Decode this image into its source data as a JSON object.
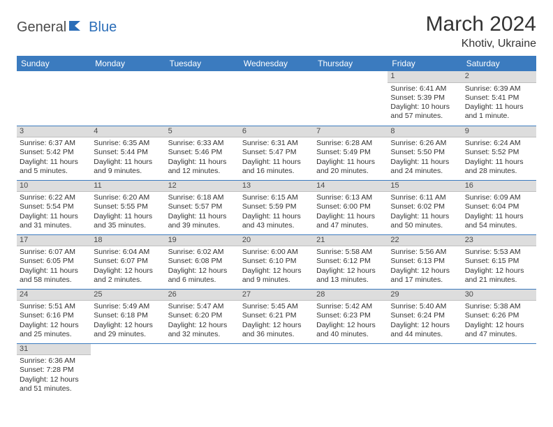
{
  "logo": {
    "part1": "General",
    "part2": "Blue"
  },
  "title": "March 2024",
  "location": "Khotiv, Ukraine",
  "colors": {
    "header_bg": "#3b7bbf",
    "header_text": "#ffffff",
    "daybar_bg": "#dddddd",
    "cell_border": "#3b7bbf",
    "text": "#333333",
    "logo_blue": "#2a6db8"
  },
  "weekdays": [
    "Sunday",
    "Monday",
    "Tuesday",
    "Wednesday",
    "Thursday",
    "Friday",
    "Saturday"
  ],
  "weeks": [
    [
      null,
      null,
      null,
      null,
      null,
      {
        "n": "1",
        "sr": "Sunrise: 6:41 AM",
        "ss": "Sunset: 5:39 PM",
        "d1": "Daylight: 10 hours",
        "d2": "and 57 minutes."
      },
      {
        "n": "2",
        "sr": "Sunrise: 6:39 AM",
        "ss": "Sunset: 5:41 PM",
        "d1": "Daylight: 11 hours",
        "d2": "and 1 minute."
      }
    ],
    [
      {
        "n": "3",
        "sr": "Sunrise: 6:37 AM",
        "ss": "Sunset: 5:42 PM",
        "d1": "Daylight: 11 hours",
        "d2": "and 5 minutes."
      },
      {
        "n": "4",
        "sr": "Sunrise: 6:35 AM",
        "ss": "Sunset: 5:44 PM",
        "d1": "Daylight: 11 hours",
        "d2": "and 9 minutes."
      },
      {
        "n": "5",
        "sr": "Sunrise: 6:33 AM",
        "ss": "Sunset: 5:46 PM",
        "d1": "Daylight: 11 hours",
        "d2": "and 12 minutes."
      },
      {
        "n": "6",
        "sr": "Sunrise: 6:31 AM",
        "ss": "Sunset: 5:47 PM",
        "d1": "Daylight: 11 hours",
        "d2": "and 16 minutes."
      },
      {
        "n": "7",
        "sr": "Sunrise: 6:28 AM",
        "ss": "Sunset: 5:49 PM",
        "d1": "Daylight: 11 hours",
        "d2": "and 20 minutes."
      },
      {
        "n": "8",
        "sr": "Sunrise: 6:26 AM",
        "ss": "Sunset: 5:50 PM",
        "d1": "Daylight: 11 hours",
        "d2": "and 24 minutes."
      },
      {
        "n": "9",
        "sr": "Sunrise: 6:24 AM",
        "ss": "Sunset: 5:52 PM",
        "d1": "Daylight: 11 hours",
        "d2": "and 28 minutes."
      }
    ],
    [
      {
        "n": "10",
        "sr": "Sunrise: 6:22 AM",
        "ss": "Sunset: 5:54 PM",
        "d1": "Daylight: 11 hours",
        "d2": "and 31 minutes."
      },
      {
        "n": "11",
        "sr": "Sunrise: 6:20 AM",
        "ss": "Sunset: 5:55 PM",
        "d1": "Daylight: 11 hours",
        "d2": "and 35 minutes."
      },
      {
        "n": "12",
        "sr": "Sunrise: 6:18 AM",
        "ss": "Sunset: 5:57 PM",
        "d1": "Daylight: 11 hours",
        "d2": "and 39 minutes."
      },
      {
        "n": "13",
        "sr": "Sunrise: 6:15 AM",
        "ss": "Sunset: 5:59 PM",
        "d1": "Daylight: 11 hours",
        "d2": "and 43 minutes."
      },
      {
        "n": "14",
        "sr": "Sunrise: 6:13 AM",
        "ss": "Sunset: 6:00 PM",
        "d1": "Daylight: 11 hours",
        "d2": "and 47 minutes."
      },
      {
        "n": "15",
        "sr": "Sunrise: 6:11 AM",
        "ss": "Sunset: 6:02 PM",
        "d1": "Daylight: 11 hours",
        "d2": "and 50 minutes."
      },
      {
        "n": "16",
        "sr": "Sunrise: 6:09 AM",
        "ss": "Sunset: 6:04 PM",
        "d1": "Daylight: 11 hours",
        "d2": "and 54 minutes."
      }
    ],
    [
      {
        "n": "17",
        "sr": "Sunrise: 6:07 AM",
        "ss": "Sunset: 6:05 PM",
        "d1": "Daylight: 11 hours",
        "d2": "and 58 minutes."
      },
      {
        "n": "18",
        "sr": "Sunrise: 6:04 AM",
        "ss": "Sunset: 6:07 PM",
        "d1": "Daylight: 12 hours",
        "d2": "and 2 minutes."
      },
      {
        "n": "19",
        "sr": "Sunrise: 6:02 AM",
        "ss": "Sunset: 6:08 PM",
        "d1": "Daylight: 12 hours",
        "d2": "and 6 minutes."
      },
      {
        "n": "20",
        "sr": "Sunrise: 6:00 AM",
        "ss": "Sunset: 6:10 PM",
        "d1": "Daylight: 12 hours",
        "d2": "and 9 minutes."
      },
      {
        "n": "21",
        "sr": "Sunrise: 5:58 AM",
        "ss": "Sunset: 6:12 PM",
        "d1": "Daylight: 12 hours",
        "d2": "and 13 minutes."
      },
      {
        "n": "22",
        "sr": "Sunrise: 5:56 AM",
        "ss": "Sunset: 6:13 PM",
        "d1": "Daylight: 12 hours",
        "d2": "and 17 minutes."
      },
      {
        "n": "23",
        "sr": "Sunrise: 5:53 AM",
        "ss": "Sunset: 6:15 PM",
        "d1": "Daylight: 12 hours",
        "d2": "and 21 minutes."
      }
    ],
    [
      {
        "n": "24",
        "sr": "Sunrise: 5:51 AM",
        "ss": "Sunset: 6:16 PM",
        "d1": "Daylight: 12 hours",
        "d2": "and 25 minutes."
      },
      {
        "n": "25",
        "sr": "Sunrise: 5:49 AM",
        "ss": "Sunset: 6:18 PM",
        "d1": "Daylight: 12 hours",
        "d2": "and 29 minutes."
      },
      {
        "n": "26",
        "sr": "Sunrise: 5:47 AM",
        "ss": "Sunset: 6:20 PM",
        "d1": "Daylight: 12 hours",
        "d2": "and 32 minutes."
      },
      {
        "n": "27",
        "sr": "Sunrise: 5:45 AM",
        "ss": "Sunset: 6:21 PM",
        "d1": "Daylight: 12 hours",
        "d2": "and 36 minutes."
      },
      {
        "n": "28",
        "sr": "Sunrise: 5:42 AM",
        "ss": "Sunset: 6:23 PM",
        "d1": "Daylight: 12 hours",
        "d2": "and 40 minutes."
      },
      {
        "n": "29",
        "sr": "Sunrise: 5:40 AM",
        "ss": "Sunset: 6:24 PM",
        "d1": "Daylight: 12 hours",
        "d2": "and 44 minutes."
      },
      {
        "n": "30",
        "sr": "Sunrise: 5:38 AM",
        "ss": "Sunset: 6:26 PM",
        "d1": "Daylight: 12 hours",
        "d2": "and 47 minutes."
      }
    ],
    [
      {
        "n": "31",
        "sr": "Sunrise: 6:36 AM",
        "ss": "Sunset: 7:28 PM",
        "d1": "Daylight: 12 hours",
        "d2": "and 51 minutes."
      },
      null,
      null,
      null,
      null,
      null,
      null
    ]
  ]
}
